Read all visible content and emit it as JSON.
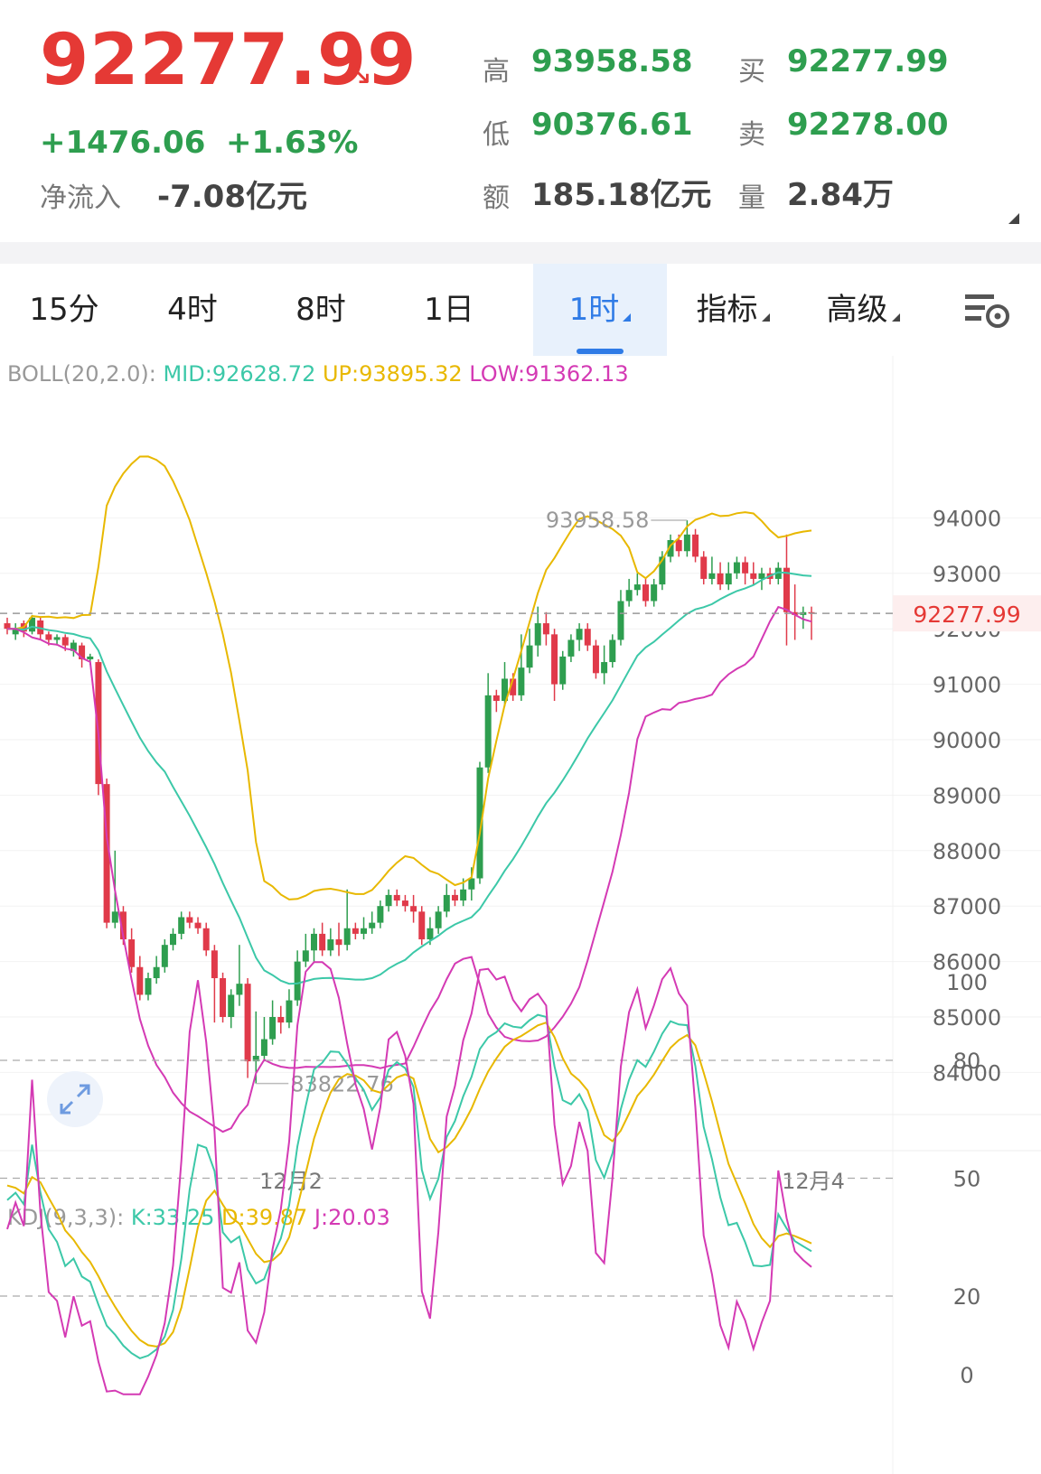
{
  "quote": {
    "price": "92277.99",
    "direction_icon": "down-right-arrow",
    "change": "+1476.06",
    "change_pct": "+1.63%",
    "netflow_label": "净流入",
    "netflow_value": "-7.08亿元",
    "high_label": "高",
    "high_value": "93958.58",
    "low_label": "低",
    "low_value": "90376.61",
    "amount_label": "额",
    "amount_value": "185.18亿元",
    "bid_label": "买",
    "bid_value": "92277.99",
    "ask_label": "卖",
    "ask_value": "92278.00",
    "volume_label": "量",
    "volume_value": "2.84万"
  },
  "tabs": [
    {
      "label": "15分",
      "active": false
    },
    {
      "label": "4时",
      "active": false
    },
    {
      "label": "8时",
      "active": false
    },
    {
      "label": "1日",
      "active": false
    },
    {
      "label": "1时",
      "active": true
    },
    {
      "label": "指标",
      "active": false
    },
    {
      "label": "高级",
      "active": false
    }
  ],
  "settings_icon": "chart-settings-icon",
  "boll": {
    "label": "BOLL(20,2.0):",
    "mid": "MID:92628.72",
    "up": "UP:93895.32",
    "low": "LOW:91362.13"
  },
  "kdj": {
    "label": "KDJ(9,3,3):",
    "k": "K:33.25",
    "d": "D:39.87",
    "j": "J:20.03"
  },
  "colors": {
    "up_candle": "#2e9e4f",
    "down_candle": "#e03a4a",
    "mid": "#3cc8a8",
    "upper": "#e8b800",
    "lower": "#d43ab4",
    "price_tag": "#e53935"
  },
  "chart_data": [
    {
      "type": "candlestick",
      "y_ticks": [
        "94000",
        "93000",
        "92000",
        "91000",
        "90000",
        "89000",
        "88000",
        "87000",
        "86000",
        "85000",
        "84000"
      ],
      "x_labels": [
        "12月2",
        "12月4"
      ],
      "current_price_tag": "92277.99",
      "high_marker": "93958.58",
      "low_marker": "83822.76",
      "candles": [
        [
          92100,
          92000,
          92200,
          91900
        ],
        [
          91900,
          92000,
          92100,
          91800
        ],
        [
          92100,
          91950,
          92150,
          91850
        ],
        [
          91950,
          92200,
          92250,
          91900
        ],
        [
          92150,
          91900,
          92200,
          91800
        ],
        [
          91900,
          91800,
          91950,
          91700
        ],
        [
          91800,
          91850,
          91900,
          91700
        ],
        [
          91850,
          91700,
          91900,
          91600
        ],
        [
          91600,
          91750,
          91800,
          91500
        ],
        [
          91700,
          91450,
          91750,
          91300
        ],
        [
          91450,
          91500,
          91550,
          91350
        ],
        [
          91400,
          89200,
          91450,
          89000
        ],
        [
          89200,
          86700,
          89300,
          86600
        ],
        [
          86700,
          86900,
          88000,
          86600
        ],
        [
          86900,
          86400,
          87000,
          86300
        ],
        [
          86400,
          85900,
          86600,
          85800
        ],
        [
          85900,
          85400,
          86100,
          85300
        ],
        [
          85400,
          85700,
          85800,
          85300
        ],
        [
          85700,
          85900,
          86100,
          85600
        ],
        [
          85900,
          86300,
          86400,
          85800
        ],
        [
          86300,
          86500,
          86600,
          86200
        ],
        [
          86500,
          86800,
          86900,
          86400
        ],
        [
          86800,
          86700,
          86900,
          86600
        ],
        [
          86700,
          86600,
          86800,
          86500
        ],
        [
          86600,
          86200,
          86700,
          86100
        ],
        [
          86200,
          85700,
          86300,
          84900
        ],
        [
          85700,
          85000,
          85800,
          84900
        ],
        [
          85000,
          85400,
          85500,
          84800
        ],
        [
          85400,
          85600,
          86300,
          85200
        ],
        [
          85600,
          84200,
          85700,
          83900
        ],
        [
          84200,
          84300,
          85100,
          83800
        ],
        [
          84300,
          84600,
          85000,
          84200
        ],
        [
          84600,
          85000,
          85300,
          84500
        ],
        [
          85000,
          84900,
          85200,
          84700
        ],
        [
          84900,
          85300,
          85500,
          84800
        ],
        [
          85300,
          86000,
          86200,
          85200
        ],
        [
          86000,
          86200,
          86500,
          85900
        ],
        [
          86200,
          86500,
          86600,
          86000
        ],
        [
          86500,
          86200,
          86700,
          86100
        ],
        [
          86200,
          86400,
          86600,
          86100
        ],
        [
          86400,
          86300,
          86700,
          86100
        ],
        [
          86300,
          86600,
          87300,
          86200
        ],
        [
          86600,
          86500,
          86700,
          86400
        ],
        [
          86500,
          86600,
          86800,
          86400
        ],
        [
          86600,
          86700,
          86900,
          86500
        ],
        [
          86700,
          87000,
          87100,
          86600
        ],
        [
          87000,
          87200,
          87300,
          86900
        ],
        [
          87200,
          87100,
          87300,
          87000
        ],
        [
          87100,
          87000,
          87200,
          86900
        ],
        [
          87000,
          86900,
          87200,
          86700
        ],
        [
          86900,
          86400,
          87000,
          86300
        ],
        [
          86400,
          86600,
          86800,
          86300
        ],
        [
          86600,
          86900,
          87000,
          86500
        ],
        [
          86900,
          87200,
          87400,
          86800
        ],
        [
          87200,
          87100,
          87300,
          87000
        ],
        [
          87100,
          87300,
          87500,
          87000
        ],
        [
          87300,
          87500,
          87700,
          87100
        ],
        [
          87500,
          89500,
          89600,
          87400
        ],
        [
          89500,
          90800,
          91200,
          89400
        ],
        [
          90800,
          90700,
          90900,
          90500
        ],
        [
          90700,
          91100,
          91400,
          90600
        ],
        [
          91100,
          90800,
          91200,
          90700
        ],
        [
          90800,
          91300,
          91900,
          90700
        ],
        [
          91300,
          91700,
          92000,
          91200
        ],
        [
          91700,
          92100,
          92400,
          91500
        ],
        [
          92100,
          91900,
          92300,
          91700
        ],
        [
          91900,
          91000,
          92000,
          90700
        ],
        [
          91000,
          91500,
          91600,
          90900
        ],
        [
          91500,
          91800,
          91900,
          91400
        ],
        [
          91800,
          92000,
          92100,
          91600
        ],
        [
          92000,
          91700,
          92100,
          91600
        ],
        [
          91700,
          91200,
          91800,
          91100
        ],
        [
          91200,
          91400,
          91700,
          91000
        ],
        [
          91400,
          91800,
          91900,
          91300
        ],
        [
          91800,
          92500,
          92700,
          91700
        ],
        [
          92500,
          92700,
          92900,
          92400
        ],
        [
          92700,
          92800,
          93000,
          92600
        ],
        [
          92800,
          92500,
          92900,
          92400
        ],
        [
          92500,
          92800,
          92900,
          92400
        ],
        [
          92800,
          93300,
          93400,
          92700
        ],
        [
          93300,
          93600,
          93700,
          93200
        ],
        [
          93600,
          93400,
          93700,
          93300
        ],
        [
          93400,
          93700,
          93958,
          93300
        ],
        [
          93700,
          93300,
          93800,
          93200
        ],
        [
          93300,
          92900,
          93400,
          92800
        ],
        [
          92900,
          93000,
          93300,
          92800
        ],
        [
          93000,
          92800,
          93200,
          92700
        ],
        [
          92800,
          93000,
          93200,
          92700
        ],
        [
          93000,
          93200,
          93300,
          92900
        ],
        [
          93200,
          93000,
          93300,
          92800
        ],
        [
          93000,
          92900,
          93200,
          92800
        ],
        [
          92900,
          93000,
          93100,
          92700
        ],
        [
          93000,
          92900,
          93100,
          92800
        ],
        [
          92900,
          93100,
          93200,
          92800
        ],
        [
          93100,
          92300,
          93700,
          91700
        ],
        [
          92300,
          92250,
          92800,
          91800
        ],
        [
          92250,
          92300,
          92400,
          92000
        ],
        [
          92300,
          92278,
          92400,
          91800
        ]
      ]
    },
    {
      "type": "line",
      "y_ticks": [
        "100",
        "80",
        "50",
        "20",
        "0"
      ]
    }
  ]
}
